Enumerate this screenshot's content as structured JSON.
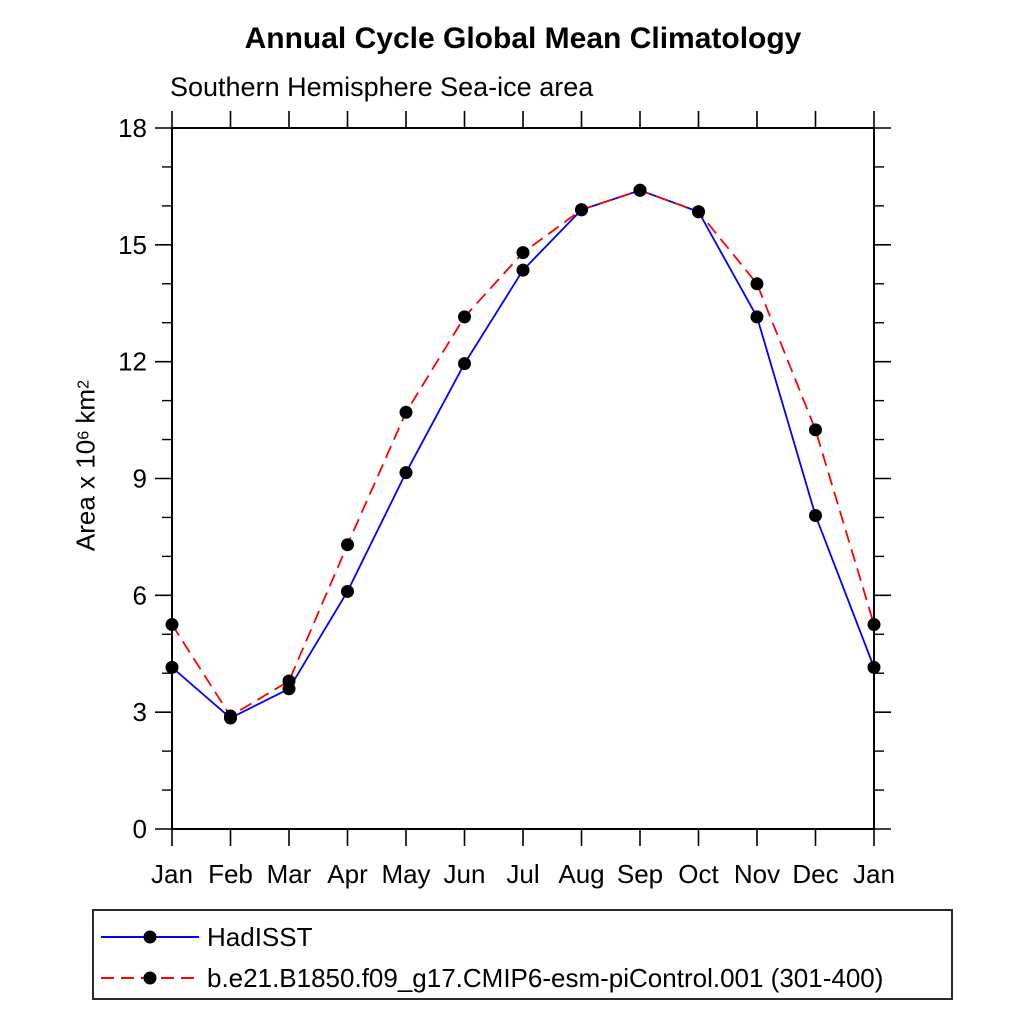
{
  "title": "Annual Cycle Global Mean Climatology",
  "subtitle": "Southern Hemisphere Sea-ice area",
  "ylabel_parts": {
    "prefix": "Area x 10",
    "exponent": "6",
    "unit": "km",
    "unit_exponent": "2"
  },
  "legend": {
    "items": [
      {
        "label": "HadISST",
        "color": "#0000ff",
        "style": "solid",
        "marker": "filled-circle",
        "marker_color": "#000000"
      },
      {
        "label": "b.e21.B1850.f09_g17.CMIP6-esm-piControl.001 (301-400)",
        "color": "#ff0000",
        "style": "dashed",
        "marker": "filled-circle",
        "marker_color": "#000000"
      }
    ]
  },
  "chart_data": {
    "type": "line",
    "title": "Annual Cycle Global Mean Climatology",
    "subtitle": "Southern Hemisphere Sea-ice area",
    "xlabel": "",
    "ylabel": "Area x 10^6 km^2",
    "x_tick_labels": [
      "Jan",
      "Feb",
      "Mar",
      "Apr",
      "May",
      "Jun",
      "Jul",
      "Aug",
      "Sep",
      "Oct",
      "Nov",
      "Dec",
      "Jan"
    ],
    "y_ticks": [
      0,
      3,
      6,
      9,
      12,
      15,
      18
    ],
    "y_minor_step": 1,
    "ylim": [
      0,
      18
    ],
    "grid": false,
    "legend_position": "bottom",
    "axis_color": "#000000",
    "marker_color": "#000000",
    "series": [
      {
        "name": "HadISST",
        "color": "#0000ff",
        "line_style": "solid",
        "marker": "filled-circle",
        "values": [
          4.15,
          2.85,
          3.6,
          6.1,
          9.15,
          11.95,
          14.35,
          15.9,
          16.4,
          15.85,
          13.15,
          8.05,
          4.15
        ]
      },
      {
        "name": "b.e21.B1850.f09_g17.CMIP6-esm-piControl.001 (301-400)",
        "color": "#ff0000",
        "line_style": "dashed",
        "marker": "filled-circle",
        "values": [
          5.25,
          2.9,
          3.8,
          7.3,
          10.7,
          13.15,
          14.8,
          15.9,
          16.4,
          15.85,
          14.0,
          10.25,
          5.25
        ]
      }
    ]
  }
}
